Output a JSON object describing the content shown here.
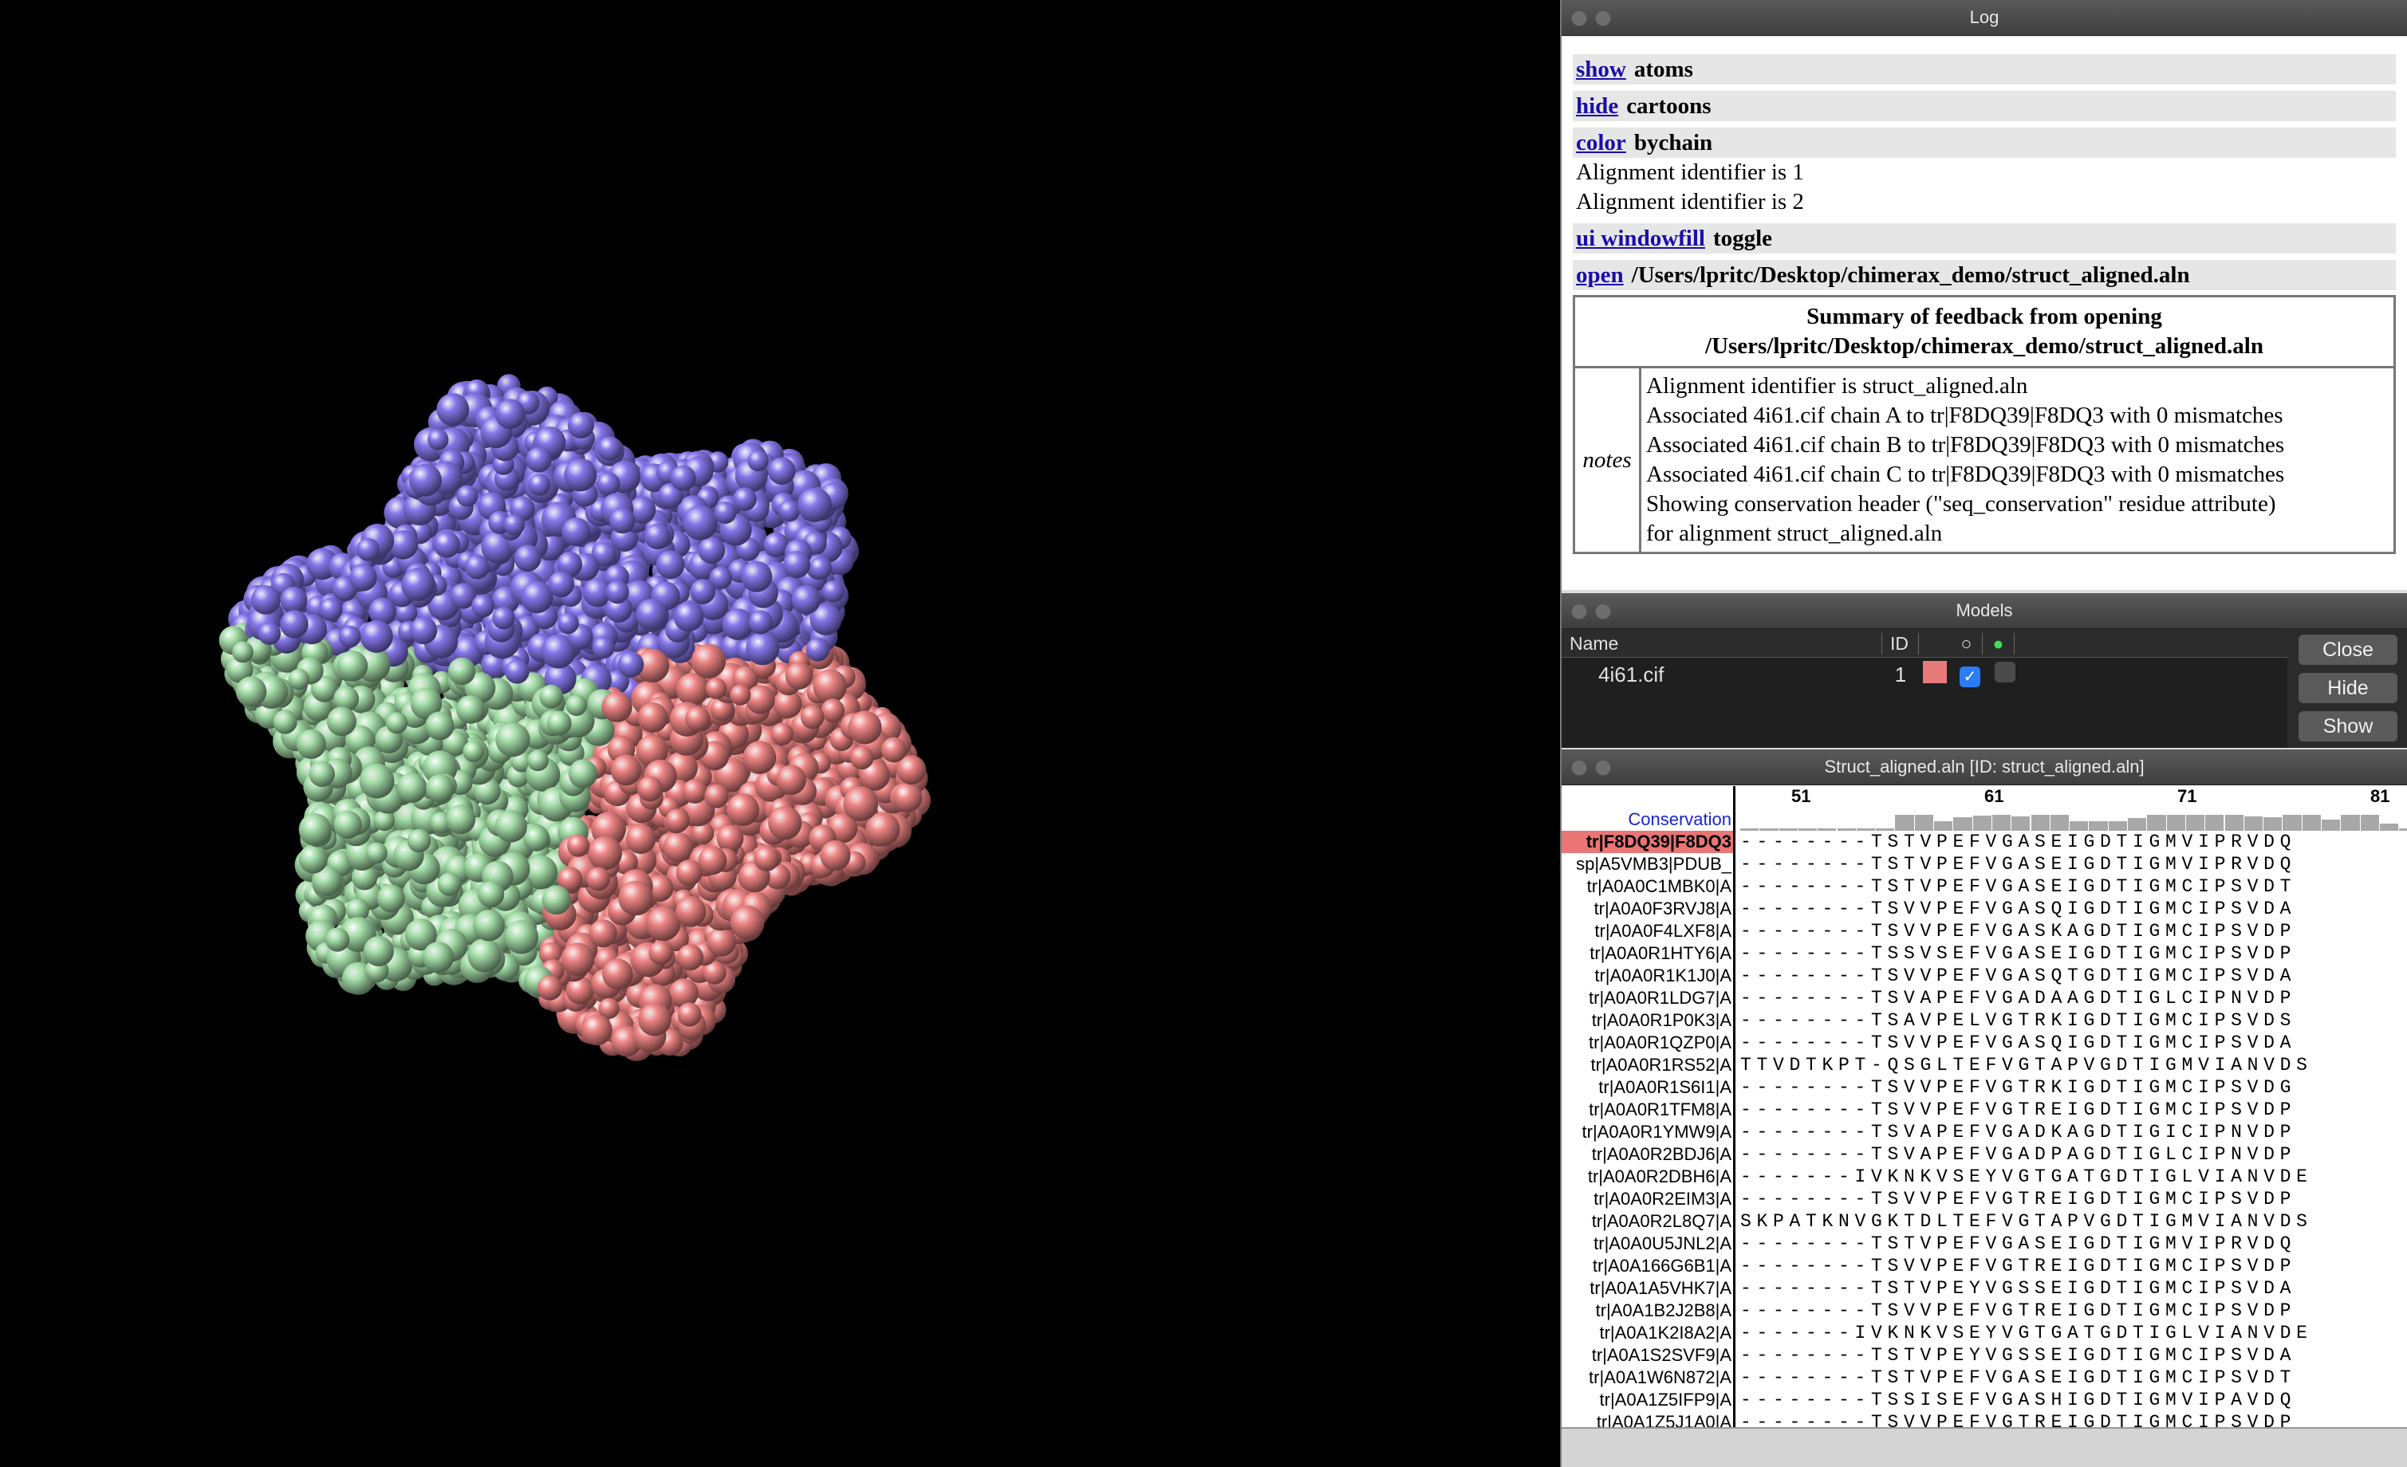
{
  "log": {
    "title": "Log",
    "entries": [
      {
        "cmd": "show",
        "rest": "atoms"
      },
      {
        "cmd": "hide",
        "rest": "cartoons"
      },
      {
        "cmd": "color",
        "rest": "bychain"
      }
    ],
    "messages": [
      "Alignment identifier is 1",
      "Alignment identifier is 2"
    ],
    "entries2": [
      {
        "cmd": "ui windowfill",
        "rest": "toggle"
      },
      {
        "cmd": "open",
        "rest": "/Users/lpritc/Desktop/chimerax_demo/struct_aligned.aln"
      }
    ],
    "summary": {
      "title_line1": "Summary of feedback from opening",
      "title_line2": "/Users/lpritc/Desktop/chimerax_demo/struct_aligned.aln",
      "notes_label": "notes",
      "notes": [
        "Alignment identifier is struct_aligned.aln",
        "Associated 4i61.cif chain A to tr|F8DQ39|F8DQ3 with 0 mismatches",
        "Associated 4i61.cif chain B to tr|F8DQ39|F8DQ3 with 0 mismatches",
        "Associated 4i61.cif chain C to tr|F8DQ39|F8DQ3 with 0 mismatches",
        "Showing conservation header (\"seq_conservation\" residue attribute)",
        "for alignment struct_aligned.aln"
      ]
    }
  },
  "models": {
    "title": "Models",
    "headers": {
      "name": "Name",
      "id": "ID"
    },
    "rows": [
      {
        "name": "4i61.cif",
        "id": "1",
        "color": "#e87a7a",
        "shown": true
      }
    ],
    "buttons": {
      "close": "Close",
      "hide": "Hide",
      "show": "Show"
    }
  },
  "alignment": {
    "title": "Struct_aligned.aln [ID: struct_aligned.aln]",
    "ruler": [
      "51",
      "61",
      "71",
      "81"
    ],
    "conservation_label": "Conservation",
    "rows": [
      {
        "name": "tr|F8DQ39|F8DQ3",
        "seq": "--------TSTVPEFVGASEIGDTIGMVIPRVDQ",
        "selected": true
      },
      {
        "name": "sp|A5VMB3|PDUB_",
        "seq": "--------TSTVPEFVGASEIGDTIGMVIPRVDQ"
      },
      {
        "name": "tr|A0A0C1MBK0|A",
        "seq": "--------TSTVPEFVGASEIGDTIGMCIPSVDT"
      },
      {
        "name": "tr|A0A0F3RVJ8|A",
        "seq": "--------TSVVPEFVGASQIGDTIGMCIPSVDA"
      },
      {
        "name": "tr|A0A0F4LXF8|A",
        "seq": "--------TSVVPEFVGASKAGDTIGMCIPSVDP"
      },
      {
        "name": "tr|A0A0R1HTY6|A",
        "seq": "--------TSSVSEFVGASEIGDTIGMCIPSVDP"
      },
      {
        "name": "tr|A0A0R1K1J0|A",
        "seq": "--------TSVVPEFVGASQTGDTIGMCIPSVDA"
      },
      {
        "name": "tr|A0A0R1LDG7|A",
        "seq": "--------TSVAPEFVGADAAGDTIGLCIPNVDP"
      },
      {
        "name": "tr|A0A0R1P0K3|A",
        "seq": "--------TSAVPELVGTRKIGDTIGMCIPSVDS"
      },
      {
        "name": "tr|A0A0R1QZP0|A",
        "seq": "--------TSVVPEFVGASQIGDTIGMCIPSVDA"
      },
      {
        "name": "tr|A0A0R1RS52|A",
        "seq": "TTVDTKPT-QSGLTEFVGTAPVGDTIGMVIANVDS"
      },
      {
        "name": "tr|A0A0R1S6I1|A",
        "seq": "--------TSVVPEFVGTRKIGDTIGMCIPSVDG"
      },
      {
        "name": "tr|A0A0R1TFM8|A",
        "seq": "--------TSVVPEFVGTREIGDTIGMCIPSVDP"
      },
      {
        "name": "tr|A0A0R1YMW9|A",
        "seq": "--------TSVAPEFVGADKAGDTIGICIPNVDP"
      },
      {
        "name": "tr|A0A0R2BDJ6|A",
        "seq": "--------TSVAPEFVGADPAGDTIGLCIPNVDP"
      },
      {
        "name": "tr|A0A0R2DBH6|A",
        "seq": "-------IVKNKVSEYVGTGATGDTIGLVIANVDE"
      },
      {
        "name": "tr|A0A0R2EIM3|A",
        "seq": "--------TSVVPEFVGTREIGDTIGMCIPSVDP"
      },
      {
        "name": "tr|A0A0R2L8Q7|A",
        "seq": "SKPATKNVGKTDLTEFVGTAPVGDTIGMVIANVDS"
      },
      {
        "name": "tr|A0A0U5JNL2|A",
        "seq": "--------TSTVPEFVGASEIGDTIGMVIPRVDQ"
      },
      {
        "name": "tr|A0A166G6B1|A",
        "seq": "--------TSVVPEFVGTREIGDTIGMCIPSVDP"
      },
      {
        "name": "tr|A0A1A5VHK7|A",
        "seq": "--------TSTVPEYVGSSEIGDTIGMCIPSVDA"
      },
      {
        "name": "tr|A0A1B2J2B8|A",
        "seq": "--------TSVVPEFVGTREIGDTIGMCIPSVDP"
      },
      {
        "name": "tr|A0A1K2I8A2|A",
        "seq": "-------IVKNKVSEYVGTGATGDTIGLVIANVDE"
      },
      {
        "name": "tr|A0A1S2SVF9|A",
        "seq": "--------TSTVPEYVGSSEIGDTIGMCIPSVDA"
      },
      {
        "name": "tr|A0A1W6N872|A",
        "seq": "--------TSTVPEFVGASEIGDTIGMCIPSVDT"
      },
      {
        "name": "tr|A0A1Z5IFP9|A",
        "seq": "--------TSSISEFVGASHIGDTIGMVIPAVDQ"
      },
      {
        "name": "tr|A0A1Z5J1A0|A",
        "seq": "--------TSVVPEFVGTREIGDTIGMCIPSVDP"
      }
    ]
  },
  "colors": {
    "chainA": "#8677ea",
    "chainB": "#a6deaa",
    "chainC": "#ee8585"
  }
}
